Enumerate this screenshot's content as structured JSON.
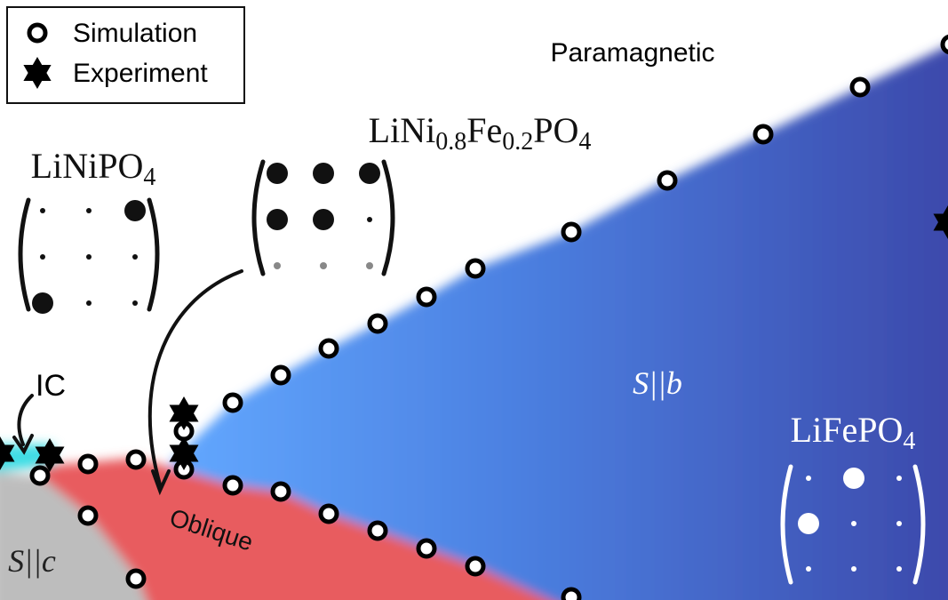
{
  "legend": {
    "items": [
      {
        "label": "Simulation"
      },
      {
        "label": "Experiment"
      }
    ]
  },
  "labels": {
    "paramagnetic": "Paramagnetic",
    "ic": "IC",
    "oblique": "Oblique",
    "s_b": "S||b",
    "s_c": "S||c"
  },
  "compounds": [
    {
      "parts": [
        {
          "text": "LiNiPO",
          "sub": false
        },
        {
          "text": "4",
          "sub": true
        }
      ]
    },
    {
      "parts": [
        {
          "text": "LiNi",
          "sub": false
        },
        {
          "text": "0.8",
          "sub": true
        },
        {
          "text": "Fe",
          "sub": false
        },
        {
          "text": "0.2",
          "sub": true
        },
        {
          "text": "PO",
          "sub": false
        },
        {
          "text": "4",
          "sub": true
        }
      ]
    },
    {
      "parts": [
        {
          "text": "LiFePO",
          "sub": false
        },
        {
          "text": "4",
          "sub": true
        }
      ]
    }
  ]
}
